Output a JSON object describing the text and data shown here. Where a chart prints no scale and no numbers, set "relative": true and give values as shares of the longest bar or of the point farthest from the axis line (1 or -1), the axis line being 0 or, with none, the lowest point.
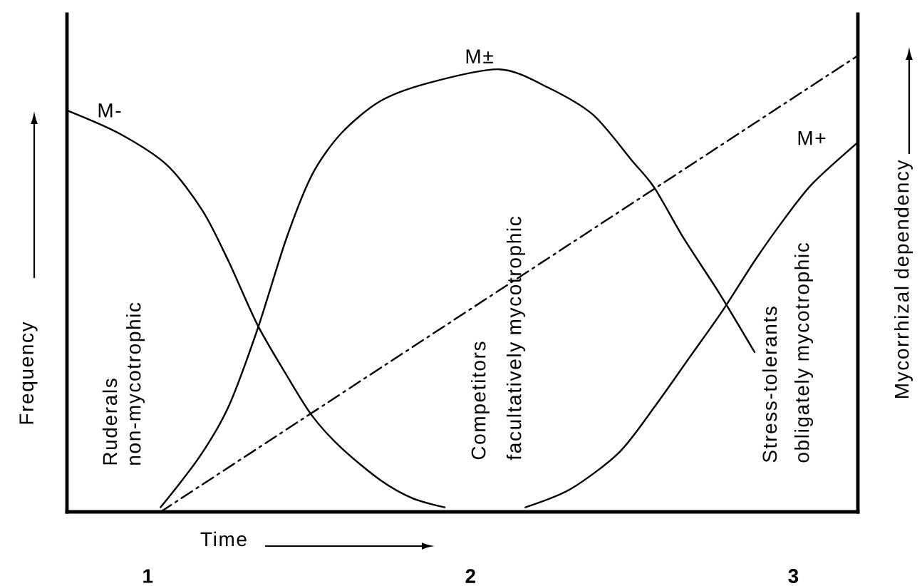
{
  "chart_data": {
    "type": "line",
    "relative": true,
    "xlabel": "Time",
    "ylabel": "Frequency",
    "y2label": "Mycorrhizal dependency",
    "xlim": [
      0.75,
      3.2
    ],
    "xticks": [
      1,
      2,
      3
    ],
    "annotations": [
      "Ruderals",
      "non-mycotrophic",
      "Competitors",
      "facultatively mycotrophic",
      "Stress-tolerants",
      "obligately mycotrophic"
    ],
    "series": [
      {
        "name": "M-",
        "color": "#000000",
        "line_style": "solid",
        "x": [
          0.75,
          0.91,
          1.06,
          1.17,
          1.25,
          1.34,
          1.43,
          1.51,
          1.6,
          1.72,
          1.82,
          1.92
        ],
        "values": [
          0.88,
          0.83,
          0.76,
          0.66,
          0.55,
          0.41,
          0.3,
          0.21,
          0.14,
          0.07,
          0.03,
          0.01
        ]
      },
      {
        "name": "M±",
        "color": "#000000",
        "line_style": "solid",
        "x": [
          1.04,
          1.16,
          1.25,
          1.34,
          1.43,
          1.51,
          1.6,
          1.72,
          1.87,
          2.09,
          2.24,
          2.38,
          2.5,
          2.57,
          2.66,
          2.77,
          2.88
        ],
        "values": [
          0.01,
          0.12,
          0.23,
          0.4,
          0.6,
          0.74,
          0.83,
          0.9,
          0.94,
          0.97,
          0.93,
          0.87,
          0.77,
          0.71,
          0.6,
          0.48,
          0.35
        ]
      },
      {
        "name": "M+",
        "color": "#000000",
        "line_style": "solid",
        "x": [
          2.17,
          2.31,
          2.46,
          2.57,
          2.68,
          2.78,
          2.88,
          2.97,
          3.06,
          3.2
        ],
        "values": [
          0.01,
          0.05,
          0.13,
          0.23,
          0.34,
          0.44,
          0.55,
          0.64,
          0.72,
          0.81
        ]
      },
      {
        "color": "#000000",
        "line_style": "dashdot",
        "x": [
          1.04,
          3.2
        ],
        "values": [
          0,
          1
        ]
      }
    ]
  }
}
